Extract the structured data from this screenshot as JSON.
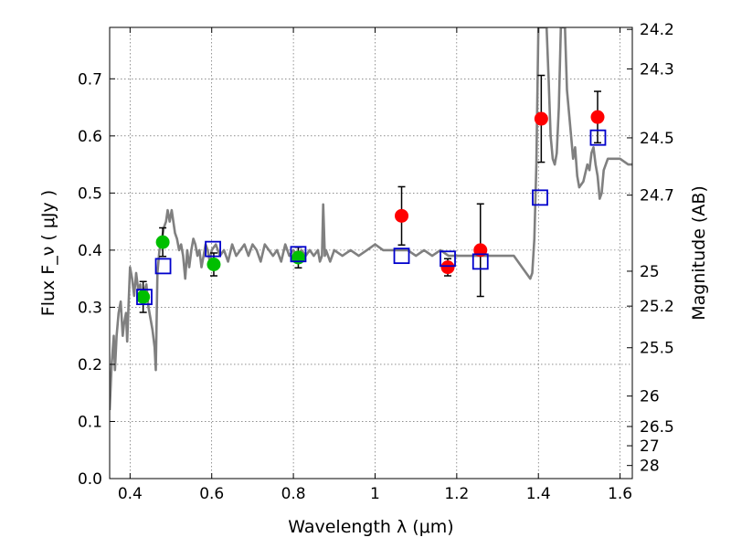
{
  "chart_data": {
    "type": "scatter",
    "xlabel": "Wavelength  λ (μm)",
    "ylabel_left": "Flux  F_ν  ( μJy )",
    "ylabel_right": "Magnitude (AB)",
    "xlim": [
      0.35,
      1.63
    ],
    "ylim": [
      0.0,
      0.79
    ],
    "grid": true,
    "xticks": [
      {
        "value": 0.4,
        "label": "0.4"
      },
      {
        "value": 0.6,
        "label": "0.6"
      },
      {
        "value": 0.8,
        "label": "0.8"
      },
      {
        "value": 1.0,
        "label": "1"
      },
      {
        "value": 1.2,
        "label": "1.2"
      },
      {
        "value": 1.4,
        "label": "1.4"
      },
      {
        "value": 1.6,
        "label": "1.6"
      }
    ],
    "yticks": [
      {
        "value": 0.0,
        "label": "0.0"
      },
      {
        "value": 0.1,
        "label": "0.1"
      },
      {
        "value": 0.2,
        "label": "0.2"
      },
      {
        "value": 0.3,
        "label": "0.3"
      },
      {
        "value": 0.4,
        "label": "0.4"
      },
      {
        "value": 0.5,
        "label": "0.5"
      },
      {
        "value": 0.6,
        "label": "0.6"
      },
      {
        "value": 0.7,
        "label": "0.7"
      }
    ],
    "mag_ticks": [
      {
        "label": "24.2",
        "flux": 0.7865
      },
      {
        "label": "24.3",
        "flux": 0.7173
      },
      {
        "label": "24.5",
        "flux": 0.5966
      },
      {
        "label": "24.7",
        "flux": 0.4963
      },
      {
        "label": "25",
        "flux": 0.3631
      },
      {
        "label": "25.2",
        "flux": 0.302
      },
      {
        "label": "25.5",
        "flux": 0.2291
      },
      {
        "label": "26",
        "flux": 0.1445
      },
      {
        "label": "26.5",
        "flux": 0.0912
      },
      {
        "label": "27",
        "flux": 0.0575
      },
      {
        "label": "28",
        "flux": 0.0229
      }
    ],
    "series": [
      {
        "kind": "line",
        "color": "#808080",
        "points": [
          [
            0.35,
            0.12
          ],
          [
            0.355,
            0.2
          ],
          [
            0.36,
            0.25
          ],
          [
            0.363,
            0.19
          ],
          [
            0.367,
            0.25
          ],
          [
            0.372,
            0.29
          ],
          [
            0.377,
            0.31
          ],
          [
            0.382,
            0.25
          ],
          [
            0.385,
            0.27
          ],
          [
            0.39,
            0.29
          ],
          [
            0.393,
            0.24
          ],
          [
            0.396,
            0.3
          ],
          [
            0.4,
            0.37
          ],
          [
            0.405,
            0.35
          ],
          [
            0.41,
            0.32
          ],
          [
            0.415,
            0.36
          ],
          [
            0.42,
            0.33
          ],
          [
            0.425,
            0.34
          ],
          [
            0.43,
            0.31
          ],
          [
            0.435,
            0.33
          ],
          [
            0.44,
            0.34
          ],
          [
            0.445,
            0.3
          ],
          [
            0.45,
            0.28
          ],
          [
            0.455,
            0.26
          ],
          [
            0.46,
            0.23
          ],
          [
            0.463,
            0.19
          ],
          [
            0.467,
            0.36
          ],
          [
            0.472,
            0.4
          ],
          [
            0.478,
            0.42
          ],
          [
            0.483,
            0.44
          ],
          [
            0.488,
            0.45
          ],
          [
            0.492,
            0.47
          ],
          [
            0.497,
            0.45
          ],
          [
            0.502,
            0.47
          ],
          [
            0.506,
            0.45
          ],
          [
            0.51,
            0.43
          ],
          [
            0.515,
            0.42
          ],
          [
            0.52,
            0.4
          ],
          [
            0.525,
            0.41
          ],
          [
            0.53,
            0.39
          ],
          [
            0.535,
            0.35
          ],
          [
            0.54,
            0.4
          ],
          [
            0.545,
            0.37
          ],
          [
            0.55,
            0.4
          ],
          [
            0.555,
            0.42
          ],
          [
            0.56,
            0.41
          ],
          [
            0.565,
            0.39
          ],
          [
            0.57,
            0.4
          ],
          [
            0.575,
            0.37
          ],
          [
            0.58,
            0.39
          ],
          [
            0.585,
            0.41
          ],
          [
            0.59,
            0.4
          ],
          [
            0.595,
            0.38
          ],
          [
            0.6,
            0.4
          ],
          [
            0.61,
            0.41
          ],
          [
            0.62,
            0.39
          ],
          [
            0.63,
            0.4
          ],
          [
            0.64,
            0.38
          ],
          [
            0.65,
            0.41
          ],
          [
            0.66,
            0.39
          ],
          [
            0.67,
            0.4
          ],
          [
            0.68,
            0.41
          ],
          [
            0.69,
            0.39
          ],
          [
            0.7,
            0.41
          ],
          [
            0.71,
            0.4
          ],
          [
            0.72,
            0.38
          ],
          [
            0.73,
            0.41
          ],
          [
            0.74,
            0.4
          ],
          [
            0.75,
            0.39
          ],
          [
            0.76,
            0.4
          ],
          [
            0.77,
            0.38
          ],
          [
            0.78,
            0.41
          ],
          [
            0.79,
            0.39
          ],
          [
            0.8,
            0.4
          ],
          [
            0.81,
            0.39
          ],
          [
            0.82,
            0.4
          ],
          [
            0.83,
            0.39
          ],
          [
            0.84,
            0.4
          ],
          [
            0.85,
            0.39
          ],
          [
            0.86,
            0.4
          ],
          [
            0.865,
            0.38
          ],
          [
            0.87,
            0.39
          ],
          [
            0.873,
            0.48
          ],
          [
            0.877,
            0.39
          ],
          [
            0.88,
            0.4
          ],
          [
            0.89,
            0.38
          ],
          [
            0.9,
            0.4
          ],
          [
            0.92,
            0.39
          ],
          [
            0.94,
            0.4
          ],
          [
            0.96,
            0.39
          ],
          [
            0.98,
            0.4
          ],
          [
            1.0,
            0.41
          ],
          [
            1.02,
            0.4
          ],
          [
            1.04,
            0.4
          ],
          [
            1.06,
            0.4
          ],
          [
            1.08,
            0.4
          ],
          [
            1.1,
            0.39
          ],
          [
            1.12,
            0.4
          ],
          [
            1.14,
            0.39
          ],
          [
            1.16,
            0.4
          ],
          [
            1.18,
            0.39
          ],
          [
            1.2,
            0.39
          ],
          [
            1.22,
            0.39
          ],
          [
            1.24,
            0.39
          ],
          [
            1.26,
            0.39
          ],
          [
            1.28,
            0.39
          ],
          [
            1.3,
            0.39
          ],
          [
            1.32,
            0.39
          ],
          [
            1.34,
            0.39
          ],
          [
            1.36,
            0.37
          ],
          [
            1.37,
            0.36
          ],
          [
            1.38,
            0.35
          ],
          [
            1.385,
            0.36
          ],
          [
            1.39,
            0.42
          ],
          [
            1.395,
            0.55
          ],
          [
            1.4,
            0.79
          ],
          [
            1.42,
            0.79
          ],
          [
            1.425,
            0.7
          ],
          [
            1.43,
            0.6
          ],
          [
            1.435,
            0.56
          ],
          [
            1.44,
            0.55
          ],
          [
            1.445,
            0.57
          ],
          [
            1.45,
            0.65
          ],
          [
            1.455,
            0.79
          ],
          [
            1.465,
            0.79
          ],
          [
            1.47,
            0.68
          ],
          [
            1.48,
            0.6
          ],
          [
            1.485,
            0.56
          ],
          [
            1.49,
            0.58
          ],
          [
            1.495,
            0.53
          ],
          [
            1.5,
            0.51
          ],
          [
            1.51,
            0.52
          ],
          [
            1.52,
            0.55
          ],
          [
            1.525,
            0.54
          ],
          [
            1.53,
            0.57
          ],
          [
            1.535,
            0.58
          ],
          [
            1.54,
            0.55
          ],
          [
            1.545,
            0.53
          ],
          [
            1.55,
            0.49
          ],
          [
            1.555,
            0.5
          ],
          [
            1.56,
            0.54
          ],
          [
            1.57,
            0.56
          ],
          [
            1.58,
            0.56
          ],
          [
            1.6,
            0.56
          ],
          [
            1.62,
            0.55
          ],
          [
            1.63,
            0.55
          ]
        ]
      },
      {
        "kind": "markers",
        "marker": "circle",
        "color": "#00bf00",
        "points": [
          [
            0.432,
            0.318
          ],
          [
            0.48,
            0.414
          ],
          [
            0.605,
            0.375
          ],
          [
            0.812,
            0.387
          ]
        ],
        "errors": [
          0.027,
          0.025,
          0.02,
          0.018
        ]
      },
      {
        "kind": "markers",
        "marker": "circle",
        "color": "#ff0000",
        "points": [
          [
            1.065,
            0.46
          ],
          [
            1.178,
            0.37
          ],
          [
            1.258,
            0.4
          ],
          [
            1.407,
            0.63
          ],
          [
            1.545,
            0.633
          ]
        ],
        "errors": [
          0.051,
          0.015,
          0.081,
          0.076,
          0.045
        ]
      },
      {
        "kind": "markers",
        "marker": "square-open",
        "color": "#0000cc",
        "points": [
          [
            0.435,
            0.318
          ],
          [
            0.481,
            0.372
          ],
          [
            0.603,
            0.402
          ],
          [
            0.812,
            0.393
          ],
          [
            1.065,
            0.39
          ],
          [
            1.178,
            0.385
          ],
          [
            1.258,
            0.38
          ],
          [
            1.404,
            0.492
          ],
          [
            1.546,
            0.597
          ]
        ]
      }
    ]
  }
}
